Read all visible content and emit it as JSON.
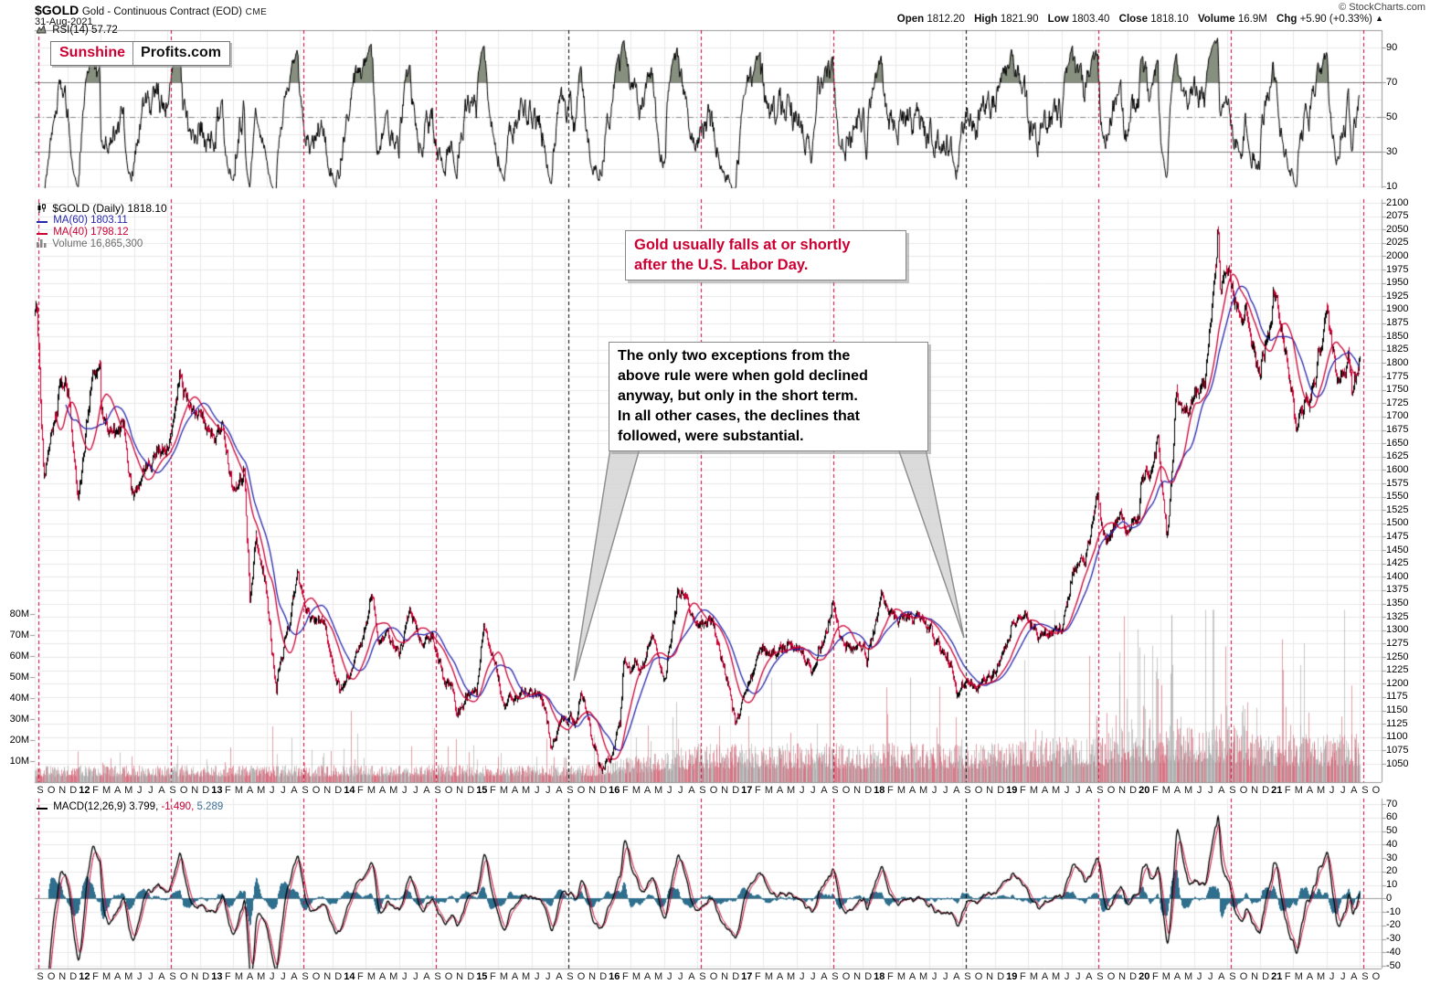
{
  "header": {
    "symbol": "$GOLD",
    "name": "Gold - Continuous Contract (EOD)",
    "exchange": "CME",
    "date": "31-Aug-2021",
    "copyright": "© StockCharts.com",
    "quote": {
      "open_label": "Open",
      "open": "1812.20",
      "high_label": "High",
      "high": "1821.90",
      "low_label": "Low",
      "low": "1803.40",
      "close_label": "Close",
      "close": "1818.10",
      "volume_label": "Volume",
      "volume": "16.9M",
      "chg_label": "Chg",
      "chg": "+5.90 (+0.33%)",
      "direction_arrow": "▲"
    }
  },
  "logo": {
    "part1": "Sunshine",
    "part2": "Profits.com"
  },
  "rsi_panel": {
    "legend": "RSI(14) 57.72",
    "ticks": [
      "90",
      "70",
      "50",
      "30",
      "10"
    ]
  },
  "main_panel": {
    "legend": {
      "symbol": "$GOLD (Daily) 1818.10",
      "ma60": "MA(60) 1803.11",
      "ma40": "MA(40) 1798.12",
      "volume": "Volume 16,865,300"
    },
    "price_ticks": [
      "2100",
      "2075",
      "2050",
      "2025",
      "2000",
      "1975",
      "1950",
      "1925",
      "1900",
      "1875",
      "1850",
      "1825",
      "1800",
      "1775",
      "1750",
      "1725",
      "1700",
      "1675",
      "1650",
      "1625",
      "1600",
      "1575",
      "1550",
      "1525",
      "1500",
      "1475",
      "1450",
      "1425",
      "1400",
      "1375",
      "1350",
      "1325",
      "1300",
      "1275",
      "1250",
      "1225",
      "1200",
      "1175",
      "1150",
      "1125",
      "1100",
      "1075",
      "1050"
    ],
    "volume_ticks": [
      "80M",
      "70M",
      "60M",
      "50M",
      "40M",
      "30M",
      "20M",
      "10M"
    ]
  },
  "macd_panel": {
    "legend_name": "MACD(12,26,9) 3.799,",
    "legend_hist": " -1.490,",
    "legend_signal": " 5.289",
    "ticks": [
      "70",
      "60",
      "50",
      "40",
      "30",
      "20",
      "10",
      "0",
      "-10",
      "-20",
      "-30",
      "-40",
      "-50"
    ]
  },
  "annotations": {
    "labor_day": "Gold usually falls at or shortly\nafter the U.S. Labor Day.",
    "exceptions": "The only two exceptions from the\nabove rule were when gold declined\nanyway, but only in the short term.\nIn all other cases, the declines that\nfollowed, were substantial."
  },
  "x_axis": {
    "bold_prefix_means_year": "*",
    "labels": [
      "S",
      "O",
      "N",
      "D",
      "*12",
      "F",
      "M",
      "A",
      "M",
      "J",
      "J",
      "A",
      "S",
      "O",
      "N",
      "D",
      "*13",
      "F",
      "M",
      "A",
      "M",
      "J",
      "J",
      "A",
      "S",
      "O",
      "N",
      "D",
      "*14",
      "F",
      "M",
      "A",
      "M",
      "J",
      "J",
      "A",
      "S",
      "O",
      "N",
      "D",
      "*15",
      "F",
      "M",
      "A",
      "M",
      "J",
      "J",
      "A",
      "S",
      "O",
      "N",
      "D",
      "*16",
      "F",
      "M",
      "A",
      "M",
      "J",
      "J",
      "A",
      "S",
      "O",
      "N",
      "D",
      "*17",
      "F",
      "M",
      "A",
      "M",
      "J",
      "J",
      "A",
      "S",
      "O",
      "N",
      "D",
      "*18",
      "F",
      "M",
      "A",
      "M",
      "J",
      "J",
      "A",
      "S",
      "O",
      "N",
      "D",
      "*19",
      "F",
      "M",
      "A",
      "M",
      "J",
      "J",
      "A",
      "S",
      "O",
      "N",
      "D",
      "*20",
      "F",
      "M",
      "A",
      "M",
      "J",
      "J",
      "A",
      "S",
      "O",
      "N",
      "D",
      "*21",
      "F",
      "M",
      "A",
      "M",
      "J",
      "J",
      "A",
      "S",
      "O"
    ]
  },
  "colors": {
    "crimson": "#cc0033",
    "candle_up": "#000000",
    "ma60_blue": "#2727ad",
    "ma40_red": "#cc0033",
    "macd_hist_teal": "#2e6f8e",
    "macd_signal": "#cc0033",
    "volume_down": "rgba(205,80,100,0.55)",
    "volume_up": "rgba(150,150,150,0.5)",
    "grid": "#e9e9e9",
    "axis_line": "#999999",
    "rsi_overbought_fill": "#87907f",
    "labor_day_line": "#cc0033",
    "exception_line": "#000000"
  },
  "chart_data": {
    "type": "candlestick",
    "title": "$GOLD Gold - Continuous Contract (EOD) CME",
    "x_range": [
      "2011-09",
      "2021-10"
    ],
    "price_axis": {
      "min": 1050,
      "max": 2100,
      "step": 25
    },
    "rsi_axis": {
      "min": 10,
      "max": 90,
      "overbought": 70,
      "midline": 50,
      "oversold": 30,
      "last": 57.72
    },
    "macd_axis": {
      "min": -50,
      "max": 70,
      "last_macd": 3.799,
      "last_hist": -1.49,
      "last_signal": 5.289
    },
    "volume_axis_millions": {
      "min": 10,
      "max": 80,
      "last": 16865300
    },
    "ma_overlays": [
      {
        "name": "MA(60)",
        "last": 1803.11
      },
      {
        "name": "MA(40)",
        "last": 1798.12
      }
    ],
    "labor_day_lines": {
      "september_years": [
        2011,
        2012,
        2013,
        2014,
        2015,
        2016,
        2017,
        2018,
        2019,
        2020,
        2021
      ],
      "exception_years": [
        2015,
        2018
      ]
    },
    "anchors": [
      [
        "2011-09-01",
        1895
      ],
      [
        "2011-09-06",
        1918
      ],
      [
        "2011-09-26",
        1598
      ],
      [
        "2011-10-01",
        1620
      ],
      [
        "2011-11-01",
        1722
      ],
      [
        "2011-11-08",
        1795
      ],
      [
        "2011-12-01",
        1746
      ],
      [
        "2011-12-29",
        1540
      ],
      [
        "2012-01-01",
        1566
      ],
      [
        "2012-02-01",
        1737
      ],
      [
        "2012-02-28",
        1785
      ],
      [
        "2012-03-01",
        1711
      ],
      [
        "2012-04-01",
        1668
      ],
      [
        "2012-05-01",
        1664
      ],
      [
        "2012-06-01",
        1564
      ],
      [
        "2012-07-01",
        1604
      ],
      [
        "2012-08-01",
        1615
      ],
      [
        "2012-09-01",
        1655
      ],
      [
        "2012-10-01",
        1771
      ],
      [
        "2012-10-04",
        1790
      ],
      [
        "2012-11-01",
        1719
      ],
      [
        "2012-12-01",
        1713
      ],
      [
        "2013-01-01",
        1676
      ],
      [
        "2013-02-01",
        1660
      ],
      [
        "2013-03-01",
        1572
      ],
      [
        "2013-04-01",
        1595
      ],
      [
        "2013-04-16",
        1368
      ],
      [
        "2013-05-01",
        1472
      ],
      [
        "2013-06-01",
        1393
      ],
      [
        "2013-06-27",
        1200
      ],
      [
        "2013-07-01",
        1224
      ],
      [
        "2013-08-01",
        1312
      ],
      [
        "2013-08-27",
        1420
      ],
      [
        "2013-09-01",
        1396
      ],
      [
        "2013-10-01",
        1327
      ],
      [
        "2013-11-01",
        1323
      ],
      [
        "2013-12-01",
        1250
      ],
      [
        "2013-12-19",
        1195
      ],
      [
        "2014-01-01",
        1202
      ],
      [
        "2014-02-01",
        1240
      ],
      [
        "2014-03-01",
        1321
      ],
      [
        "2014-03-16",
        1382
      ],
      [
        "2014-04-01",
        1284
      ],
      [
        "2014-05-01",
        1296
      ],
      [
        "2014-06-01",
        1246
      ],
      [
        "2014-07-01",
        1322
      ],
      [
        "2014-08-01",
        1281
      ],
      [
        "2014-09-01",
        1287
      ],
      [
        "2014-10-01",
        1209
      ],
      [
        "2014-11-01",
        1173
      ],
      [
        "2014-11-06",
        1145
      ],
      [
        "2014-12-01",
        1176
      ],
      [
        "2015-01-01",
        1184
      ],
      [
        "2015-01-22",
        1300
      ],
      [
        "2015-02-01",
        1279
      ],
      [
        "2015-03-01",
        1213
      ],
      [
        "2015-03-17",
        1148
      ],
      [
        "2015-04-01",
        1183
      ],
      [
        "2015-05-01",
        1184
      ],
      [
        "2015-06-01",
        1189
      ],
      [
        "2015-07-01",
        1172
      ],
      [
        "2015-07-24",
        1085
      ],
      [
        "2015-08-01",
        1095
      ],
      [
        "2015-09-01",
        1135
      ],
      [
        "2015-10-01",
        1115
      ],
      [
        "2015-10-15",
        1185
      ],
      [
        "2015-11-01",
        1141
      ],
      [
        "2015-12-01",
        1061
      ],
      [
        "2015-12-17",
        1050
      ],
      [
        "2016-01-01",
        1060
      ],
      [
        "2016-02-01",
        1116
      ],
      [
        "2016-02-11",
        1245
      ],
      [
        "2016-03-01",
        1234
      ],
      [
        "2016-04-01",
        1233
      ],
      [
        "2016-05-01",
        1290
      ],
      [
        "2016-06-01",
        1215
      ],
      [
        "2016-07-01",
        1322
      ],
      [
        "2016-07-06",
        1367
      ],
      [
        "2016-08-01",
        1357
      ],
      [
        "2016-09-01",
        1311
      ],
      [
        "2016-10-01",
        1317
      ],
      [
        "2016-11-01",
        1273
      ],
      [
        "2016-12-01",
        1174
      ],
      [
        "2016-12-15",
        1130
      ],
      [
        "2017-01-01",
        1152
      ],
      [
        "2017-02-01",
        1211
      ],
      [
        "2017-03-01",
        1253
      ],
      [
        "2017-04-01",
        1247
      ],
      [
        "2017-05-01",
        1268
      ],
      [
        "2017-06-01",
        1275
      ],
      [
        "2017-07-01",
        1242
      ],
      [
        "2017-07-10",
        1212
      ],
      [
        "2017-08-01",
        1268
      ],
      [
        "2017-09-01",
        1321
      ],
      [
        "2017-09-08",
        1351
      ],
      [
        "2017-10-01",
        1280
      ],
      [
        "2017-11-01",
        1271
      ],
      [
        "2017-12-01",
        1275
      ],
      [
        "2017-12-12",
        1240
      ],
      [
        "2018-01-01",
        1303
      ],
      [
        "2018-01-25",
        1362
      ],
      [
        "2018-02-01",
        1345
      ],
      [
        "2018-03-01",
        1318
      ],
      [
        "2018-04-01",
        1325
      ],
      [
        "2018-05-01",
        1319
      ],
      [
        "2018-06-01",
        1305
      ],
      [
        "2018-07-01",
        1254
      ],
      [
        "2018-08-01",
        1233
      ],
      [
        "2018-08-16",
        1178
      ],
      [
        "2018-09-01",
        1206
      ],
      [
        "2018-10-01",
        1192
      ],
      [
        "2018-11-01",
        1215
      ],
      [
        "2018-12-01",
        1226
      ],
      [
        "2019-01-01",
        1281
      ],
      [
        "2019-02-01",
        1321
      ],
      [
        "2019-02-20",
        1347
      ],
      [
        "2019-03-01",
        1313
      ],
      [
        "2019-04-01",
        1292
      ],
      [
        "2019-05-01",
        1286
      ],
      [
        "2019-06-01",
        1306
      ],
      [
        "2019-07-01",
        1410
      ],
      [
        "2019-08-01",
        1426
      ],
      [
        "2019-09-01",
        1529
      ],
      [
        "2019-09-04",
        1552
      ],
      [
        "2019-10-01",
        1466
      ],
      [
        "2019-11-01",
        1515
      ],
      [
        "2019-12-01",
        1473
      ],
      [
        "2020-01-01",
        1523
      ],
      [
        "2020-01-08",
        1580
      ],
      [
        "2020-02-01",
        1587
      ],
      [
        "2020-02-24",
        1672
      ],
      [
        "2020-03-01",
        1585
      ],
      [
        "2020-03-16",
        1486
      ],
      [
        "2020-04-01",
        1583
      ],
      [
        "2020-04-14",
        1769
      ],
      [
        "2020-05-01",
        1694
      ],
      [
        "2020-06-01",
        1730
      ],
      [
        "2020-07-01",
        1781
      ],
      [
        "2020-08-01",
        1986
      ],
      [
        "2020-08-06",
        2072
      ],
      [
        "2020-08-12",
        1932
      ],
      [
        "2020-09-01",
        1975
      ],
      [
        "2020-10-01",
        1896
      ],
      [
        "2020-11-01",
        1879
      ],
      [
        "2020-11-30",
        1776
      ],
      [
        "2020-12-01",
        1781
      ],
      [
        "2021-01-01",
        1895
      ],
      [
        "2021-01-06",
        1952
      ],
      [
        "2021-02-01",
        1848
      ],
      [
        "2021-03-01",
        1729
      ],
      [
        "2021-03-08",
        1678
      ],
      [
        "2021-04-01",
        1708
      ],
      [
        "2021-05-01",
        1768
      ],
      [
        "2021-06-01",
        1905
      ],
      [
        "2021-06-16",
        1860
      ],
      [
        "2021-07-01",
        1771
      ],
      [
        "2021-08-01",
        1814
      ],
      [
        "2021-08-09",
        1735
      ],
      [
        "2021-09-01",
        1818
      ]
    ]
  }
}
